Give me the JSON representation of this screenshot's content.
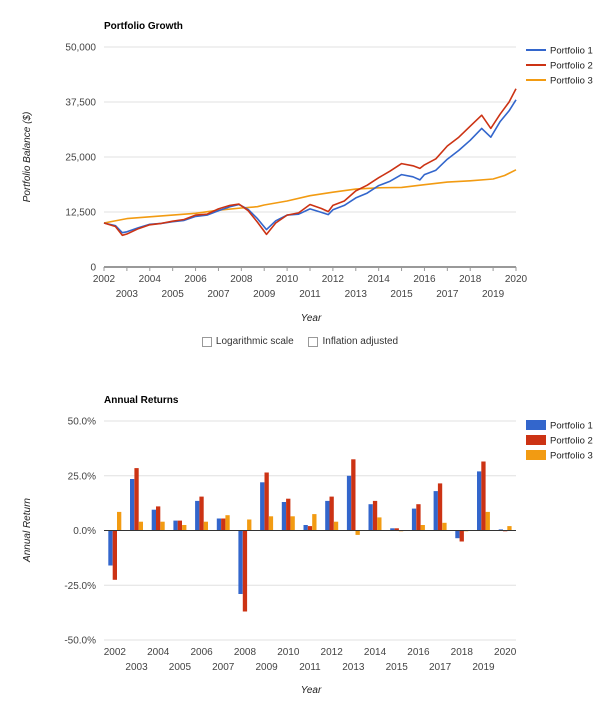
{
  "colors": {
    "p1": "#3366cc",
    "p2": "#cc3314",
    "p3": "#f29b12",
    "grid": "#e0e0e0",
    "axis": "#333"
  },
  "controls": {
    "log_scale_label": "Logarithmic scale",
    "inflation_label": "Inflation adjusted"
  },
  "chart_data": [
    {
      "type": "line",
      "title": "Portfolio Growth",
      "xlabel": "Year",
      "ylabel": "Portfolio Balance ($)",
      "ylim": [
        0,
        50000
      ],
      "yticks": [
        "0",
        "12,500",
        "25,000",
        "37,500",
        "50,000"
      ],
      "ytick_values": [
        0,
        12500,
        25000,
        37500,
        50000
      ],
      "xlim": [
        2002,
        2020
      ],
      "xticks_top": [
        "2002",
        "2004",
        "2006",
        "2008",
        "2010",
        "2012",
        "2014",
        "2016",
        "2018",
        "2020"
      ],
      "xticks_bottom": [
        "2003",
        "2005",
        "2007",
        "2009",
        "2011",
        "2013",
        "2015",
        "2017",
        "2019"
      ],
      "legend": "right",
      "series": [
        {
          "name": "Portfolio 1",
          "points": [
            [
              2002,
              10000
            ],
            [
              2002.5,
              9400
            ],
            [
              2002.8,
              7800
            ],
            [
              2003,
              8000
            ],
            [
              2003.5,
              8900
            ],
            [
              2004,
              9700
            ],
            [
              2004.5,
              9900
            ],
            [
              2005,
              10300
            ],
            [
              2005.5,
              10600
            ],
            [
              2006,
              11500
            ],
            [
              2006.5,
              11800
            ],
            [
              2007,
              12800
            ],
            [
              2007.5,
              13700
            ],
            [
              2007.9,
              14200
            ],
            [
              2008.3,
              13100
            ],
            [
              2008.7,
              11000
            ],
            [
              2009.1,
              8500
            ],
            [
              2009.5,
              10500
            ],
            [
              2010,
              11800
            ],
            [
              2010.5,
              12000
            ],
            [
              2011,
              13200
            ],
            [
              2011.5,
              12400
            ],
            [
              2011.8,
              11900
            ],
            [
              2012,
              13000
            ],
            [
              2012.5,
              14000
            ],
            [
              2013,
              15700
            ],
            [
              2013.5,
              16800
            ],
            [
              2014,
              18500
            ],
            [
              2014.5,
              19500
            ],
            [
              2015,
              21000
            ],
            [
              2015.5,
              20500
            ],
            [
              2015.8,
              19800
            ],
            [
              2016,
              21000
            ],
            [
              2016.5,
              22000
            ],
            [
              2017,
              24500
            ],
            [
              2017.5,
              26500
            ],
            [
              2018,
              28800
            ],
            [
              2018.5,
              31500
            ],
            [
              2018.9,
              29500
            ],
            [
              2019.3,
              33000
            ],
            [
              2019.7,
              35500
            ],
            [
              2020,
              38000
            ]
          ]
        },
        {
          "name": "Portfolio 2",
          "points": [
            [
              2002,
              10000
            ],
            [
              2002.5,
              9200
            ],
            [
              2002.8,
              7200
            ],
            [
              2003,
              7500
            ],
            [
              2003.5,
              8700
            ],
            [
              2004,
              9600
            ],
            [
              2004.5,
              9900
            ],
            [
              2005,
              10400
            ],
            [
              2005.5,
              10800
            ],
            [
              2006,
              11800
            ],
            [
              2006.5,
              12000
            ],
            [
              2007,
              13200
            ],
            [
              2007.5,
              14000
            ],
            [
              2007.9,
              14300
            ],
            [
              2008.3,
              12800
            ],
            [
              2008.7,
              10200
            ],
            [
              2009.1,
              7400
            ],
            [
              2009.5,
              10000
            ],
            [
              2010,
              11800
            ],
            [
              2010.5,
              12300
            ],
            [
              2011,
              14200
            ],
            [
              2011.5,
              13300
            ],
            [
              2011.8,
              12600
            ],
            [
              2012,
              14000
            ],
            [
              2012.5,
              15000
            ],
            [
              2013,
              17300
            ],
            [
              2013.5,
              18600
            ],
            [
              2014,
              20300
            ],
            [
              2014.5,
              21800
            ],
            [
              2015,
              23500
            ],
            [
              2015.5,
              23000
            ],
            [
              2015.8,
              22400
            ],
            [
              2016,
              23200
            ],
            [
              2016.5,
              24600
            ],
            [
              2017,
              27500
            ],
            [
              2017.5,
              29500
            ],
            [
              2018,
              32000
            ],
            [
              2018.5,
              34500
            ],
            [
              2018.9,
              31500
            ],
            [
              2019.3,
              34700
            ],
            [
              2019.7,
              37500
            ],
            [
              2020,
              40500
            ]
          ]
        },
        {
          "name": "Portfolio 3",
          "points": [
            [
              2002,
              10000
            ],
            [
              2003,
              11000
            ],
            [
              2004,
              11400
            ],
            [
              2005,
              11800
            ],
            [
              2006,
              12200
            ],
            [
              2007,
              12900
            ],
            [
              2008,
              13400
            ],
            [
              2008.7,
              13700
            ],
            [
              2009,
              14100
            ],
            [
              2010,
              15000
            ],
            [
              2011,
              16200
            ],
            [
              2012,
              17000
            ],
            [
              2013,
              17700
            ],
            [
              2014,
              18000
            ],
            [
              2015,
              18100
            ],
            [
              2016,
              18700
            ],
            [
              2017,
              19300
            ],
            [
              2018,
              19600
            ],
            [
              2019,
              20000
            ],
            [
              2019.5,
              20800
            ],
            [
              2020,
              22100
            ]
          ]
        }
      ]
    },
    {
      "type": "bar",
      "title": "Annual Returns",
      "xlabel": "Year",
      "ylabel": "Annual Return",
      "ylim": [
        -50,
        50
      ],
      "yticks": [
        "-50.0%",
        "-25.0%",
        "0.0%",
        "25.0%",
        "50.0%"
      ],
      "ytick_values": [
        -50,
        -25,
        0,
        25,
        50
      ],
      "legend": "right",
      "categories": [
        "2002",
        "2003",
        "2004",
        "2005",
        "2006",
        "2007",
        "2008",
        "2009",
        "2010",
        "2011",
        "2012",
        "2013",
        "2014",
        "2015",
        "2016",
        "2017",
        "2018",
        "2019",
        "2020"
      ],
      "xticks_top": [
        "2002",
        "2004",
        "2006",
        "2008",
        "2010",
        "2012",
        "2014",
        "2016",
        "2018",
        "2020"
      ],
      "xticks_bottom": [
        "2003",
        "2005",
        "2007",
        "2009",
        "2011",
        "2013",
        "2015",
        "2017",
        "2019"
      ],
      "series": [
        {
          "name": "Portfolio 1",
          "values": [
            -16,
            23.5,
            9.5,
            4.5,
            13.5,
            5.5,
            -29,
            22,
            13,
            2.5,
            13.5,
            25,
            12,
            1,
            10,
            18,
            -3.5,
            27,
            0.5
          ]
        },
        {
          "name": "Portfolio 2",
          "values": [
            -22.5,
            28.5,
            11,
            4.5,
            15.5,
            5.5,
            -37,
            26.5,
            14.5,
            2,
            15.5,
            32.5,
            13.5,
            1,
            12,
            21.5,
            -5,
            31.5,
            0
          ]
        },
        {
          "name": "Portfolio 3",
          "values": [
            8.5,
            4,
            4,
            2.5,
            4,
            7,
            5,
            6.5,
            6.5,
            7.5,
            4,
            -2,
            6,
            0,
            2.5,
            3.5,
            0,
            8.5,
            2
          ]
        }
      ]
    }
  ]
}
